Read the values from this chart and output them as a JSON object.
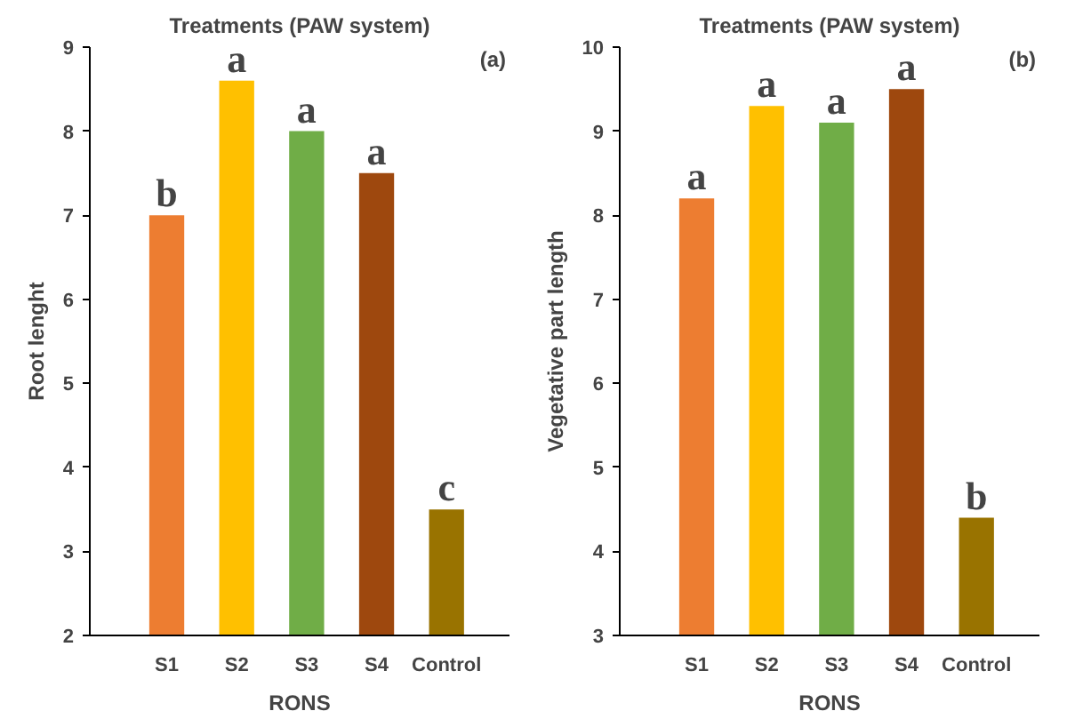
{
  "chart_data": [
    {
      "type": "bar",
      "title": "Treatments (PAW system)",
      "xlabel": "RONS",
      "ylabel": "Root lenght",
      "categories": [
        "S1",
        "S2",
        "S3",
        "S4",
        "Control"
      ],
      "values": [
        7.0,
        8.6,
        8.0,
        7.5,
        3.5
      ],
      "colors": [
        "#ed7d31",
        "#ffc000",
        "#70ad47",
        "#9e480e",
        "#997300"
      ],
      "ylim": [
        2,
        9
      ],
      "yticks": [
        2,
        3,
        4,
        5,
        6,
        7,
        8,
        9
      ],
      "grid": false,
      "annotations": [
        "(a)",
        {
          "text": "b",
          "x": "S1",
          "y": 7.0
        },
        {
          "text": "a",
          "x": "S2",
          "y": 8.6
        },
        {
          "text": "a",
          "x": "S3",
          "y": 8.0
        },
        {
          "text": "a",
          "x": "S4",
          "y": 7.5
        },
        {
          "text": "c",
          "x": "Control",
          "y": 3.5
        }
      ]
    },
    {
      "type": "bar",
      "title": "Treatments (PAW system)",
      "xlabel": "RONS",
      "ylabel": "Vegetative part length",
      "categories": [
        "S1",
        "S2",
        "S3",
        "S4",
        "Control"
      ],
      "values": [
        8.2,
        9.3,
        9.1,
        9.5,
        4.4
      ],
      "colors": [
        "#ed7d31",
        "#ffc000",
        "#70ad47",
        "#9e480e",
        "#997300"
      ],
      "ylim": [
        3,
        10
      ],
      "yticks": [
        3,
        4,
        5,
        6,
        7,
        8,
        9,
        10
      ],
      "grid": false,
      "annotations": [
        "(b)",
        {
          "text": "a",
          "x": "S1",
          "y": 8.2
        },
        {
          "text": "a",
          "x": "S2",
          "y": 9.3
        },
        {
          "text": "a",
          "x": "S3",
          "y": 9.1
        },
        {
          "text": "a",
          "x": "S4",
          "y": 9.5
        },
        {
          "text": "b",
          "x": "Control",
          "y": 4.4
        }
      ]
    }
  ]
}
